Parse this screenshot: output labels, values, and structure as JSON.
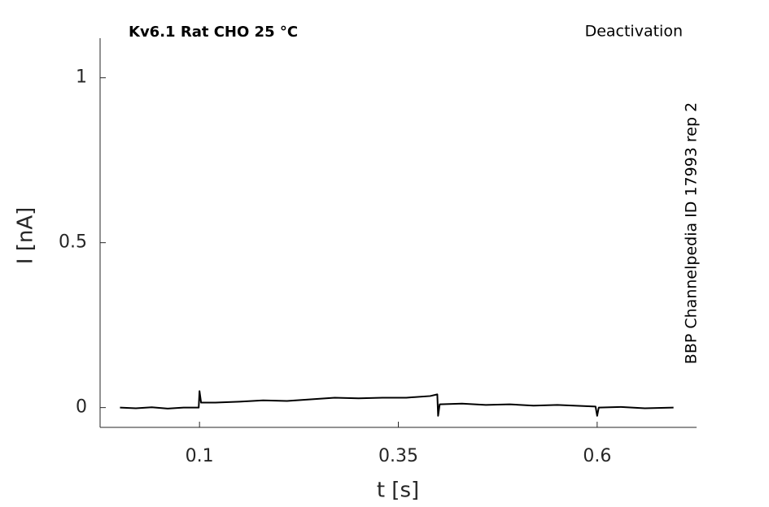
{
  "chart_data": {
    "type": "line",
    "title": "Kv6.1  Rat  CHO  25 °C",
    "protocol": "Deactivation",
    "source": "BBP Channelpedia ID 17993 rep 2",
    "x_label": "t [s]",
    "y_label": "I [nA]",
    "xlim": [
      -0.025,
      0.725
    ],
    "ylim": [
      -0.06,
      1.12
    ],
    "xticks": [
      0.1,
      0.35,
      0.6
    ],
    "yticks": [
      0,
      0.5,
      1
    ],
    "x": [
      0,
      0.02,
      0.04,
      0.06,
      0.08,
      0.099,
      0.1,
      0.102,
      0.12,
      0.15,
      0.18,
      0.21,
      0.24,
      0.27,
      0.3,
      0.33,
      0.36,
      0.39,
      0.399,
      0.4,
      0.402,
      0.43,
      0.46,
      0.49,
      0.52,
      0.55,
      0.58,
      0.598,
      0.6,
      0.602,
      0.63,
      0.66,
      0.696
    ],
    "series": [
      {
        "color": "#000000",
        "values": [
          0,
          -0.002,
          0.001,
          -0.003,
          0,
          0,
          0.05,
          0.015,
          0.015,
          0.018,
          0.022,
          0.02,
          0.025,
          0.03,
          0.028,
          0.03,
          0.03,
          0.035,
          0.04,
          -0.025,
          0.01,
          0.012,
          0.008,
          0.01,
          0.006,
          0.008,
          0.005,
          0.003,
          -0.025,
          0,
          0.002,
          -0.002,
          0
        ]
      }
    ]
  }
}
